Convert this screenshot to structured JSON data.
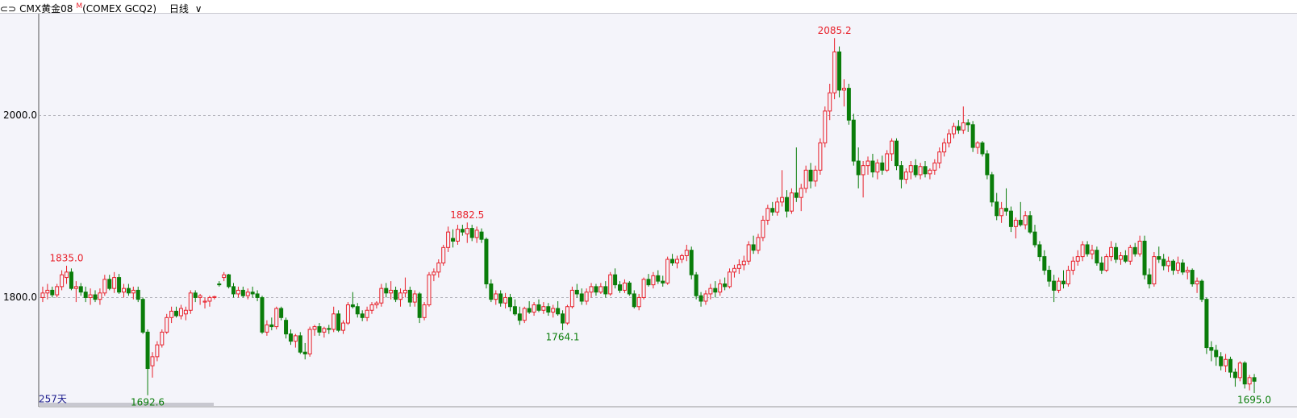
{
  "header": {
    "symbol": "CMX黄金08",
    "flag": "M",
    "code": "(COMEX GCQ2)",
    "period": "日线"
  },
  "chart_data": {
    "type": "candlestick",
    "ylim": [
      1680,
      2112
    ],
    "yticks": [
      {
        "value": 1800,
        "label": "1800.0"
      },
      {
        "value": 2000,
        "label": "2000.0"
      }
    ],
    "grid": true,
    "up_color": "#e8202a",
    "down_color": "#0a7d0a",
    "count_label": "257天",
    "annotations": [
      {
        "value": 1835.0,
        "label": "1835.0"
      },
      {
        "value": 1692.6,
        "label": "1692.6"
      },
      {
        "value": 1882.5,
        "label": "1882.5"
      },
      {
        "value": 1764.1,
        "label": "1764.1"
      },
      {
        "value": 2085.2,
        "label": "2085.2"
      },
      {
        "value": 1695.0,
        "label": "1695.0"
      }
    ],
    "ohlc": [
      [
        1800,
        1812,
        1795,
        1805
      ],
      [
        1805,
        1815,
        1798,
        1808
      ],
      [
        1808,
        1812,
        1800,
        1803
      ],
      [
        1803,
        1815,
        1800,
        1812
      ],
      [
        1812,
        1830,
        1808,
        1825
      ],
      [
        1822,
        1835.0,
        1815,
        1828
      ],
      [
        1828,
        1832,
        1808,
        1810
      ],
      [
        1810,
        1818,
        1795,
        1812
      ],
      [
        1812,
        1816,
        1802,
        1806
      ],
      [
        1806,
        1812,
        1795,
        1800
      ],
      [
        1800,
        1810,
        1792,
        1803
      ],
      [
        1803,
        1808,
        1795,
        1798
      ],
      [
        1798,
        1810,
        1792,
        1805
      ],
      [
        1805,
        1825,
        1802,
        1820
      ],
      [
        1820,
        1825,
        1808,
        1810
      ],
      [
        1810,
        1828,
        1805,
        1822
      ],
      [
        1822,
        1826,
        1804,
        1806
      ],
      [
        1806,
        1815,
        1800,
        1810
      ],
      [
        1810,
        1815,
        1802,
        1805
      ],
      [
        1805,
        1812,
        1798,
        1808
      ],
      [
        1808,
        1812,
        1795,
        1798
      ],
      [
        1798,
        1800,
        1760,
        1762
      ],
      [
        1762,
        1765,
        1692.6,
        1722
      ],
      [
        1725,
        1740,
        1712,
        1735
      ],
      [
        1735,
        1752,
        1730,
        1748
      ],
      [
        1748,
        1765,
        1745,
        1762
      ],
      [
        1762,
        1782,
        1760,
        1778
      ],
      [
        1778,
        1790,
        1772,
        1785
      ],
      [
        1785,
        1790,
        1778,
        1780
      ],
      [
        1780,
        1792,
        1776,
        1788
      ],
      [
        1782,
        1790,
        1775,
        1786
      ],
      [
        1786,
        1808,
        1782,
        1805
      ],
      [
        1805,
        1808,
        1795,
        1800
      ],
      [
        1800,
        1804,
        1792,
        1802
      ],
      [
        1795,
        1800,
        1788,
        1796
      ],
      [
        1796,
        1802,
        1790,
        1800
      ],
      [
        1800,
        1802,
        1798,
        1801
      ],
      [
        1815,
        1818,
        1812,
        1814
      ],
      [
        1822,
        1828,
        1818,
        1825
      ],
      [
        1825,
        1826,
        1810,
        1812
      ],
      [
        1812,
        1816,
        1800,
        1804
      ],
      [
        1804,
        1812,
        1800,
        1808
      ],
      [
        1808,
        1812,
        1800,
        1802
      ],
      [
        1802,
        1810,
        1798,
        1806
      ],
      [
        1806,
        1812,
        1800,
        1804
      ],
      [
        1804,
        1808,
        1796,
        1800
      ],
      [
        1800,
        1802,
        1760,
        1762
      ],
      [
        1762,
        1775,
        1758,
        1770
      ],
      [
        1770,
        1778,
        1764,
        1768
      ],
      [
        1768,
        1790,
        1765,
        1788
      ],
      [
        1788,
        1790,
        1775,
        1778
      ],
      [
        1775,
        1778,
        1755,
        1760
      ],
      [
        1760,
        1765,
        1748,
        1752
      ],
      [
        1752,
        1760,
        1745,
        1758
      ],
      [
        1758,
        1762,
        1738,
        1740
      ],
      [
        1740,
        1750,
        1732,
        1738
      ],
      [
        1738,
        1768,
        1735,
        1765
      ],
      [
        1765,
        1770,
        1758,
        1768
      ],
      [
        1768,
        1772,
        1758,
        1762
      ],
      [
        1762,
        1768,
        1756,
        1766
      ],
      [
        1766,
        1770,
        1760,
        1765
      ],
      [
        1765,
        1790,
        1762,
        1782
      ],
      [
        1782,
        1786,
        1762,
        1764
      ],
      [
        1764,
        1775,
        1760,
        1772
      ],
      [
        1772,
        1795,
        1770,
        1792
      ],
      [
        1792,
        1806,
        1788,
        1790
      ],
      [
        1790,
        1794,
        1778,
        1782
      ],
      [
        1782,
        1786,
        1774,
        1778
      ],
      [
        1778,
        1790,
        1774,
        1786
      ],
      [
        1786,
        1795,
        1782,
        1792
      ],
      [
        1792,
        1796,
        1788,
        1794
      ],
      [
        1794,
        1815,
        1790,
        1810
      ],
      [
        1810,
        1816,
        1800,
        1805
      ],
      [
        1805,
        1818,
        1798,
        1808
      ],
      [
        1808,
        1812,
        1795,
        1798
      ],
      [
        1798,
        1810,
        1790,
        1805
      ],
      [
        1805,
        1822,
        1800,
        1808
      ],
      [
        1808,
        1812,
        1790,
        1795
      ],
      [
        1795,
        1808,
        1790,
        1804
      ],
      [
        1804,
        1806,
        1772,
        1778
      ],
      [
        1778,
        1795,
        1775,
        1792
      ],
      [
        1792,
        1828,
        1790,
        1825
      ],
      [
        1825,
        1832,
        1818,
        1828
      ],
      [
        1828,
        1842,
        1822,
        1838
      ],
      [
        1838,
        1858,
        1835,
        1855
      ],
      [
        1855,
        1878,
        1850,
        1872
      ],
      [
        1865,
        1875,
        1855,
        1862
      ],
      [
        1862,
        1880,
        1858,
        1875
      ],
      [
        1875,
        1880,
        1868,
        1872
      ],
      [
        1870,
        1882.5,
        1860,
        1876
      ],
      [
        1876,
        1880,
        1862,
        1866
      ],
      [
        1866,
        1878,
        1860,
        1874
      ],
      [
        1872,
        1876,
        1860,
        1864
      ],
      [
        1864,
        1866,
        1810,
        1815
      ],
      [
        1815,
        1820,
        1795,
        1798
      ],
      [
        1798,
        1808,
        1792,
        1804
      ],
      [
        1804,
        1808,
        1790,
        1794
      ],
      [
        1794,
        1805,
        1788,
        1800
      ],
      [
        1800,
        1804,
        1785,
        1790
      ],
      [
        1790,
        1798,
        1780,
        1782
      ],
      [
        1782,
        1790,
        1770,
        1775
      ],
      [
        1775,
        1790,
        1772,
        1788
      ],
      [
        1788,
        1796,
        1782,
        1784
      ],
      [
        1784,
        1795,
        1780,
        1792
      ],
      [
        1792,
        1798,
        1784,
        1786
      ],
      [
        1786,
        1795,
        1782,
        1790
      ],
      [
        1790,
        1794,
        1780,
        1784
      ],
      [
        1784,
        1792,
        1778,
        1788
      ],
      [
        1788,
        1796,
        1780,
        1782
      ],
      [
        1782,
        1786,
        1764.1,
        1772
      ],
      [
        1772,
        1792,
        1770,
        1790
      ],
      [
        1790,
        1812,
        1788,
        1808
      ],
      [
        1808,
        1815,
        1800,
        1804
      ],
      [
        1804,
        1810,
        1792,
        1796
      ],
      [
        1796,
        1810,
        1792,
        1806
      ],
      [
        1806,
        1816,
        1800,
        1812
      ],
      [
        1812,
        1815,
        1802,
        1806
      ],
      [
        1806,
        1816,
        1804,
        1812
      ],
      [
        1812,
        1818,
        1800,
        1804
      ],
      [
        1804,
        1828,
        1802,
        1825
      ],
      [
        1825,
        1832,
        1810,
        1814
      ],
      [
        1814,
        1818,
        1805,
        1808
      ],
      [
        1808,
        1820,
        1805,
        1816
      ],
      [
        1816,
        1818,
        1802,
        1804
      ],
      [
        1804,
        1808,
        1788,
        1790
      ],
      [
        1790,
        1804,
        1786,
        1800
      ],
      [
        1800,
        1822,
        1798,
        1820
      ],
      [
        1820,
        1826,
        1812,
        1814
      ],
      [
        1814,
        1828,
        1810,
        1824
      ],
      [
        1824,
        1830,
        1815,
        1818
      ],
      [
        1818,
        1824,
        1812,
        1816
      ],
      [
        1816,
        1845,
        1814,
        1842
      ],
      [
        1842,
        1848,
        1835,
        1838
      ],
      [
        1838,
        1846,
        1832,
        1842
      ],
      [
        1842,
        1848,
        1838,
        1846
      ],
      [
        1846,
        1858,
        1840,
        1852
      ],
      [
        1852,
        1856,
        1820,
        1825
      ],
      [
        1825,
        1828,
        1798,
        1802
      ],
      [
        1802,
        1806,
        1790,
        1796
      ],
      [
        1796,
        1808,
        1792,
        1804
      ],
      [
        1804,
        1815,
        1798,
        1810
      ],
      [
        1810,
        1818,
        1800,
        1806
      ],
      [
        1806,
        1820,
        1802,
        1815
      ],
      [
        1815,
        1822,
        1808,
        1812
      ],
      [
        1812,
        1832,
        1810,
        1828
      ],
      [
        1828,
        1836,
        1822,
        1832
      ],
      [
        1832,
        1842,
        1826,
        1836
      ],
      [
        1836,
        1846,
        1830,
        1840
      ],
      [
        1840,
        1862,
        1836,
        1858
      ],
      [
        1858,
        1868,
        1848,
        1852
      ],
      [
        1852,
        1870,
        1848,
        1866
      ],
      [
        1866,
        1890,
        1862,
        1885
      ],
      [
        1885,
        1902,
        1880,
        1898
      ],
      [
        1898,
        1905,
        1890,
        1894
      ],
      [
        1894,
        1910,
        1890,
        1905
      ],
      [
        1905,
        1940,
        1900,
        1910
      ],
      [
        1910,
        1918,
        1888,
        1895
      ],
      [
        1895,
        1920,
        1892,
        1915
      ],
      [
        1915,
        1965,
        1905,
        1910
      ],
      [
        1910,
        1925,
        1895,
        1920
      ],
      [
        1920,
        1945,
        1915,
        1940
      ],
      [
        1940,
        1948,
        1920,
        1928
      ],
      [
        1928,
        1945,
        1922,
        1940
      ],
      [
        1940,
        1975,
        1935,
        1970
      ],
      [
        1970,
        2010,
        1965,
        2005
      ],
      [
        2005,
        2035,
        1995,
        2025
      ],
      [
        2025,
        2085.2,
        2018,
        2070
      ],
      [
        2070,
        2076,
        2020,
        2028
      ],
      [
        2028,
        2040,
        2010,
        2030
      ],
      [
        2030,
        2035,
        1990,
        1995
      ],
      [
        1995,
        2002,
        1945,
        1950
      ],
      [
        1950,
        1965,
        1920,
        1935
      ],
      [
        1935,
        1950,
        1910,
        1945
      ],
      [
        1945,
        1955,
        1935,
        1950
      ],
      [
        1950,
        1958,
        1932,
        1938
      ],
      [
        1938,
        1952,
        1930,
        1948
      ],
      [
        1948,
        1956,
        1935,
        1940
      ],
      [
        1940,
        1962,
        1938,
        1958
      ],
      [
        1958,
        1975,
        1950,
        1972
      ],
      [
        1972,
        1975,
        1940,
        1945
      ],
      [
        1945,
        1950,
        1920,
        1930
      ],
      [
        1930,
        1942,
        1925,
        1938
      ],
      [
        1938,
        1950,
        1930,
        1945
      ],
      [
        1945,
        1952,
        1932,
        1935
      ],
      [
        1935,
        1948,
        1930,
        1944
      ],
      [
        1944,
        1950,
        1932,
        1936
      ],
      [
        1936,
        1942,
        1930,
        1940
      ],
      [
        1940,
        1952,
        1935,
        1948
      ],
      [
        1948,
        1965,
        1942,
        1960
      ],
      [
        1960,
        1975,
        1955,
        1970
      ],
      [
        1970,
        1985,
        1965,
        1980
      ],
      [
        1980,
        1992,
        1975,
        1988
      ],
      [
        1988,
        1995,
        1980,
        1984
      ],
      [
        1984,
        2010,
        1980,
        1992
      ],
      [
        1992,
        1996,
        1982,
        1990
      ],
      [
        1990,
        1994,
        1960,
        1965
      ],
      [
        1965,
        1972,
        1958,
        1970
      ],
      [
        1970,
        1972,
        1955,
        1958
      ],
      [
        1958,
        1962,
        1930,
        1935
      ],
      [
        1935,
        1938,
        1900,
        1905
      ],
      [
        1905,
        1915,
        1885,
        1890
      ],
      [
        1890,
        1905,
        1882,
        1898
      ],
      [
        1898,
        1920,
        1890,
        1895
      ],
      [
        1895,
        1900,
        1872,
        1878
      ],
      [
        1878,
        1888,
        1865,
        1885
      ],
      [
        1885,
        1905,
        1878,
        1880
      ],
      [
        1880,
        1895,
        1875,
        1890
      ],
      [
        1890,
        1895,
        1870,
        1872
      ],
      [
        1872,
        1880,
        1855,
        1858
      ],
      [
        1858,
        1862,
        1840,
        1845
      ],
      [
        1845,
        1852,
        1825,
        1830
      ],
      [
        1830,
        1835,
        1812,
        1818
      ],
      [
        1818,
        1825,
        1795,
        1808
      ],
      [
        1808,
        1822,
        1805,
        1818
      ],
      [
        1818,
        1830,
        1810,
        1815
      ],
      [
        1815,
        1835,
        1812,
        1830
      ],
      [
        1830,
        1845,
        1825,
        1840
      ],
      [
        1840,
        1852,
        1835,
        1845
      ],
      [
        1845,
        1862,
        1840,
        1858
      ],
      [
        1858,
        1862,
        1845,
        1848
      ],
      [
        1848,
        1858,
        1842,
        1852
      ],
      [
        1852,
        1856,
        1835,
        1838
      ],
      [
        1838,
        1845,
        1826,
        1830
      ],
      [
        1830,
        1848,
        1828,
        1845
      ],
      [
        1845,
        1862,
        1840,
        1855
      ],
      [
        1855,
        1860,
        1838,
        1842
      ],
      [
        1842,
        1850,
        1836,
        1846
      ],
      [
        1846,
        1852,
        1838,
        1840
      ],
      [
        1840,
        1858,
        1836,
        1855
      ],
      [
        1855,
        1860,
        1845,
        1848
      ],
      [
        1848,
        1868,
        1845,
        1862
      ],
      [
        1862,
        1868,
        1820,
        1825
      ],
      [
        1825,
        1832,
        1810,
        1815
      ],
      [
        1815,
        1850,
        1812,
        1845
      ],
      [
        1845,
        1856,
        1838,
        1842
      ],
      [
        1842,
        1848,
        1830,
        1835
      ],
      [
        1835,
        1845,
        1828,
        1840
      ],
      [
        1840,
        1842,
        1825,
        1830
      ],
      [
        1830,
        1845,
        1826,
        1838
      ],
      [
        1838,
        1842,
        1825,
        1828
      ],
      [
        1828,
        1834,
        1820,
        1830
      ],
      [
        1830,
        1832,
        1812,
        1815
      ],
      [
        1815,
        1822,
        1805,
        1818
      ],
      [
        1818,
        1820,
        1795,
        1798
      ],
      [
        1798,
        1800,
        1738,
        1745
      ],
      [
        1745,
        1752,
        1730,
        1742
      ],
      [
        1742,
        1748,
        1725,
        1735
      ],
      [
        1735,
        1740,
        1720,
        1725
      ],
      [
        1725,
        1738,
        1718,
        1732
      ],
      [
        1732,
        1735,
        1712,
        1718
      ],
      [
        1718,
        1722,
        1702,
        1712
      ],
      [
        1712,
        1730,
        1708,
        1728
      ],
      [
        1728,
        1730,
        1700,
        1705
      ],
      [
        1705,
        1715,
        1698,
        1712
      ],
      [
        1712,
        1716,
        1695.0,
        1708
      ]
    ]
  }
}
